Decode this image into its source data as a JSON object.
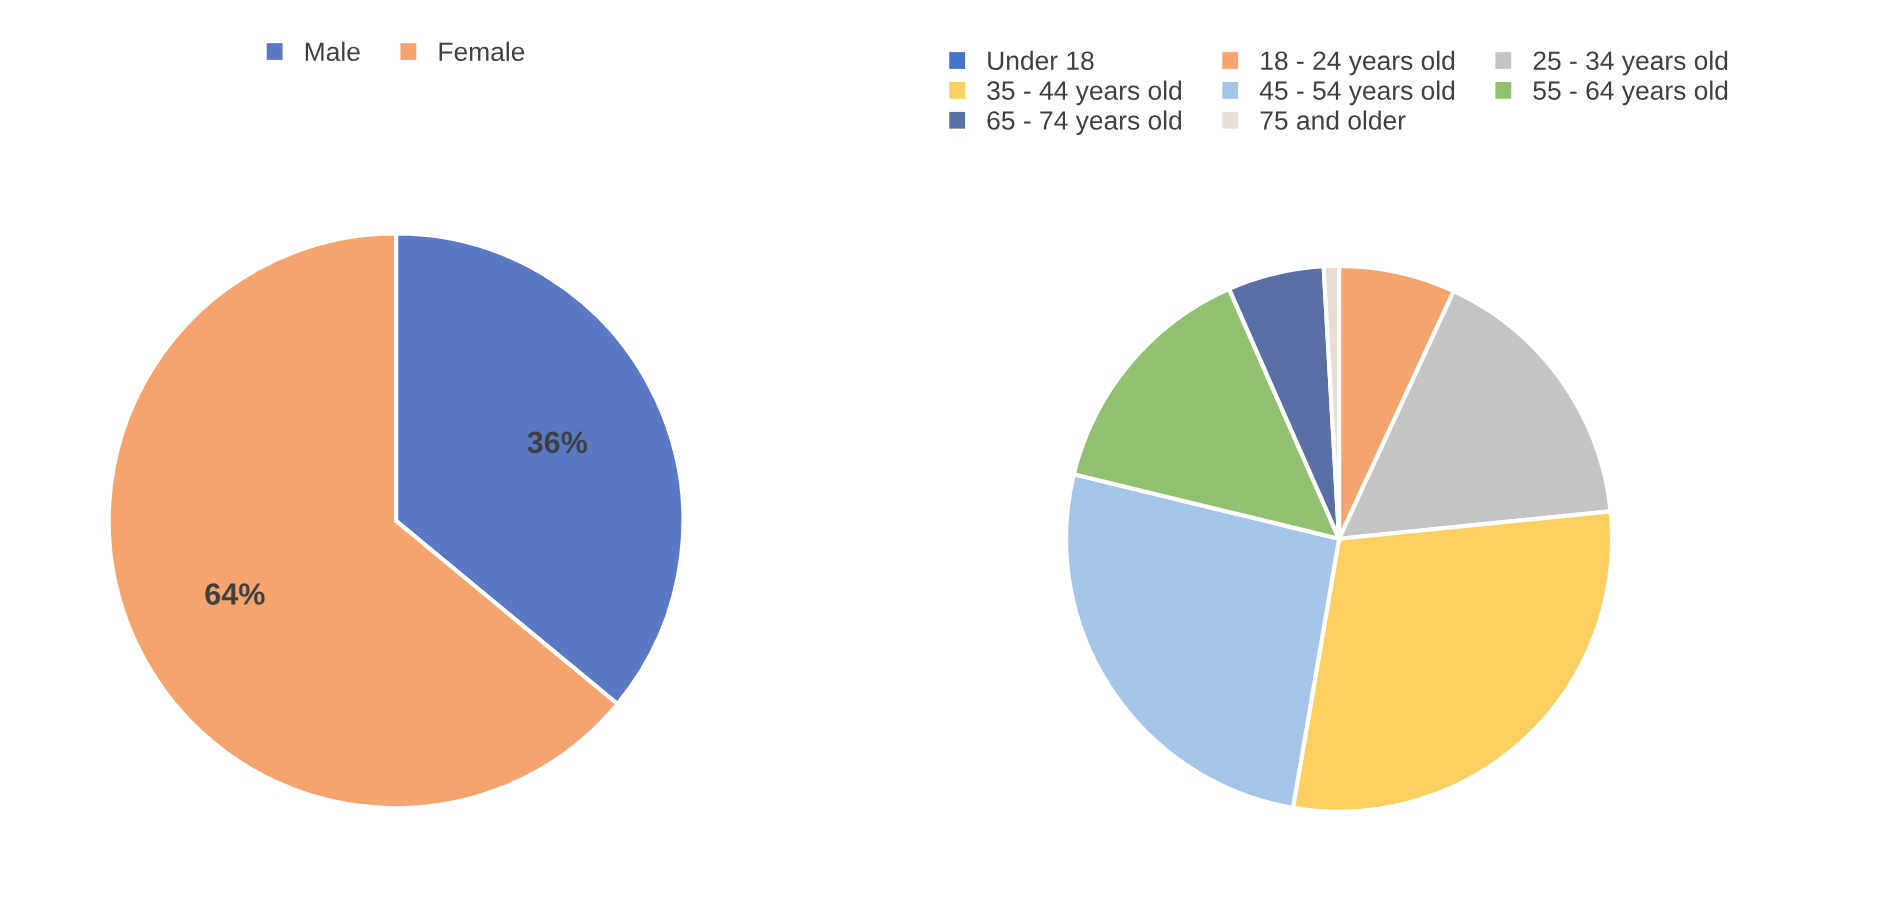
{
  "chart_data": [
    {
      "type": "pie",
      "categories": [
        "Male",
        "Female"
      ],
      "values": [
        36,
        64
      ],
      "colors": [
        "#5a78c4",
        "#f4a46c"
      ],
      "value_labels": [
        "36%",
        "64%"
      ],
      "legend": "top"
    },
    {
      "type": "pie",
      "categories": [
        "Under 18",
        "18 - 24 years old",
        "25 - 34 years old",
        "35 - 44 years old",
        "45 - 54 years old",
        "55 - 64 years old",
        "65 - 74 years old",
        "75 and older"
      ],
      "values": [
        0,
        6.9,
        16.5,
        29.3,
        26.1,
        14.6,
        5.7,
        0.9
      ],
      "colors": [
        "#4472c4",
        "#f4a46c",
        "#c4c4c4",
        "#fcd060",
        "#a4c4e8",
        "#90c070",
        "#5a70a4",
        "#e8ddd4"
      ],
      "legend": "top"
    }
  ]
}
